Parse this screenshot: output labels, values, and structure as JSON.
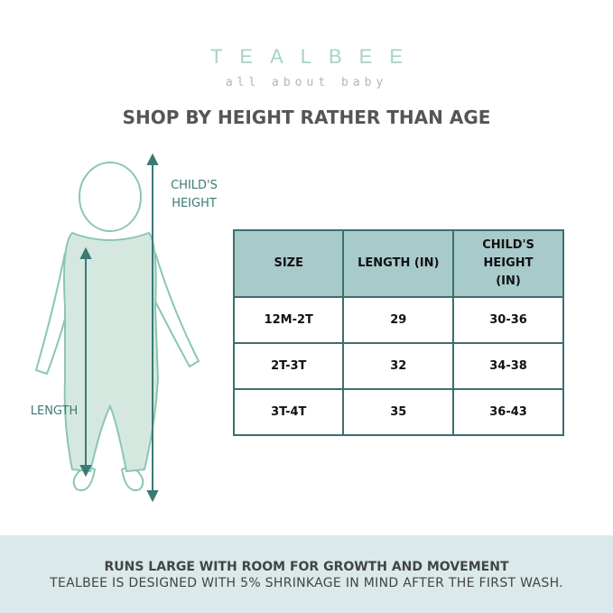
{
  "brand": {
    "name": "TEALBEE",
    "tagline": "all about baby"
  },
  "title": "SHOP BY HEIGHT RATHER THAN AGE",
  "diagram": {
    "height_label": [
      "CHILD'S",
      "HEIGHT"
    ],
    "length_label": "LENGTH",
    "colors": {
      "arrow": "#3b7a74",
      "body": "#d5e8e0",
      "outline": "#8cc5b5"
    }
  },
  "table": {
    "headers": [
      "SIZE",
      "LENGTH (IN)",
      "CHILD'S HEIGHT (IN)"
    ],
    "rows": [
      [
        "12M-2T",
        "29",
        "30-36"
      ],
      [
        "2T-3T",
        "32",
        "34-38"
      ],
      [
        "3T-4T",
        "35",
        "36-43"
      ]
    ]
  },
  "footer": {
    "headline": "RUNS LARGE WITH ROOM FOR GROWTH AND MOVEMENT",
    "note": "TEALBEE IS DESIGNED WITH 5% SHRINKAGE IN MIND AFTER THE FIRST WASH."
  }
}
